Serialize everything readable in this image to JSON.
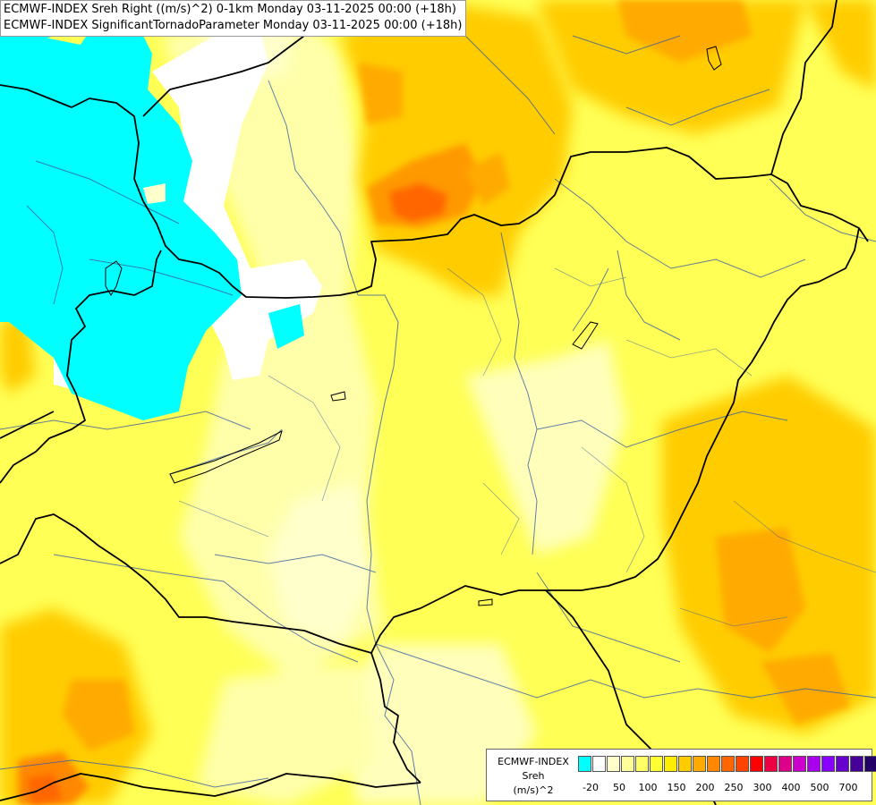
{
  "header": {
    "line1": "ECMWF-INDEX Sreh Right ((m/s)^2) 0-1km Monday 03-11-2025 00:00 (+18h)",
    "line2": "ECMWF-INDEX SignificantTornadoParameter Monday 03-11-2025 00:00 (+18h)"
  },
  "legend": {
    "title1": "ECMWF-INDEX",
    "title2": "Sreh",
    "unit": "(m/s)^2",
    "colors": [
      "#00ffff",
      "#ffffff",
      "#ffffcc",
      "#ffff99",
      "#ffff66",
      "#ffff33",
      "#ffee00",
      "#ffcc00",
      "#ffaa00",
      "#ff8800",
      "#ff6600",
      "#ff4400",
      "#ff0000",
      "#ee0044",
      "#dd0088",
      "#cc00cc",
      "#aa00ee",
      "#8800ff",
      "#6600cc",
      "#440099",
      "#220066"
    ],
    "tick_labels": [
      "-20",
      "50",
      "100",
      "150",
      "200",
      "250",
      "300",
      "400",
      "500",
      "700"
    ]
  },
  "map": {
    "field_colors": {
      "base": "#ffff55",
      "cyan": "#00ffff",
      "white": "#ffffff",
      "pale": "#ffffbb",
      "orange": "#ffbb00",
      "deep_orange": "#ff8800",
      "red_orange": "#ff5500"
    },
    "line_colors": {
      "borders": "#000000",
      "rivers": "#3a5fa0"
    }
  }
}
